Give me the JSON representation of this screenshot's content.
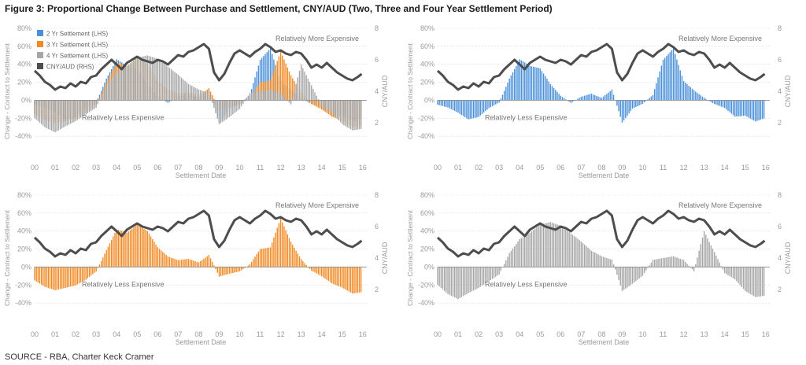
{
  "figure": {
    "title": "Figure 3: Proportional Change Between Purchase and Settlement, CNY/AUD (Two, Three and Four Year Settlement Period)",
    "source": "SOURCE - RBA, Charter Keck Cramer"
  },
  "colors": {
    "two_year": "#4a90d9",
    "three_year": "#f08a24",
    "four_year": "#a6a6a6",
    "cny_aud": "#4d4d4d",
    "axis_text": "#9a9a9a",
    "grid": "#d9d9d9"
  },
  "chart_data": [
    {
      "type": "bar",
      "panel": "top-left",
      "series_shown": [
        "2yr",
        "3yr",
        "4yr",
        "cny"
      ],
      "xlabel": "Settlement Date",
      "ylabel_left": "Change - Contract to Settlement",
      "ylabel_right": "CNY/AUD",
      "annotation_top": "Relatively More Expensive",
      "annotation_bottom": "Relatively Less Expensive",
      "legend": [
        "2 Yr Settlement (LHS)",
        "3 Yr Settlement (LHS)",
        "4 Yr Settlement (LHS)",
        "CNY/AUD (RHS)"
      ],
      "legend_position": "top-left"
    },
    {
      "type": "bar",
      "panel": "top-right",
      "series_shown": [
        "2yr",
        "cny"
      ],
      "xlabel": "Settlement Date",
      "ylabel_left": "Change - Contract to Settlement",
      "ylabel_right": "CNY/AUD",
      "annotation_top": "Relatively More Expensive",
      "annotation_bottom": "Relatively Less Expensive"
    },
    {
      "type": "bar",
      "panel": "bottom-left",
      "series_shown": [
        "3yr",
        "cny"
      ],
      "xlabel": "Settlement Date",
      "ylabel_left": "Change - Contract to Settlement",
      "ylabel_right": "CNY/AUD",
      "annotation_top": "Relatively More Expensive",
      "annotation_bottom": "Relatively Less Expensive"
    },
    {
      "type": "bar",
      "panel": "bottom-right",
      "series_shown": [
        "4yr",
        "cny"
      ],
      "xlabel": "Settlement Date",
      "ylabel_left": "Change - Contract to Settlement",
      "ylabel_right": "CNY/AUD",
      "annotation_top": "Relatively More Expensive",
      "annotation_bottom": "Relatively Less Expensive"
    }
  ],
  "shared": {
    "x_ticks": [
      "00",
      "01",
      "02",
      "03",
      "04",
      "05",
      "06",
      "07",
      "08",
      "09",
      "10",
      "11",
      "12",
      "13",
      "14",
      "15",
      "16"
    ],
    "xlim": [
      2000,
      2016.2
    ],
    "ylim_left": [
      -60,
      80
    ],
    "y_ticks_left": [
      "80%",
      "60%",
      "40%",
      "20%",
      "0%",
      "-20%",
      "-40%"
    ],
    "y_ticks_left_values": [
      80,
      60,
      40,
      20,
      0,
      -20,
      -40
    ],
    "ylim_right": [
      0,
      8
    ],
    "y_ticks_right": [
      "8",
      "6",
      "4",
      "2"
    ],
    "y_ticks_right_values": [
      8,
      6,
      4,
      2
    ],
    "cny_aud": {
      "x": [
        2000.0,
        2000.25,
        2000.5,
        2000.75,
        2001.0,
        2001.25,
        2001.5,
        2001.75,
        2002.0,
        2002.25,
        2002.5,
        2002.75,
        2003.0,
        2003.25,
        2003.5,
        2003.75,
        2004.0,
        2004.25,
        2004.5,
        2004.75,
        2005.0,
        2005.25,
        2005.5,
        2005.75,
        2006.0,
        2006.25,
        2006.5,
        2006.75,
        2007.0,
        2007.25,
        2007.5,
        2007.75,
        2008.0,
        2008.25,
        2008.5,
        2008.75,
        2009.0,
        2009.25,
        2009.5,
        2009.75,
        2010.0,
        2010.25,
        2010.5,
        2010.75,
        2011.0,
        2011.25,
        2011.5,
        2011.75,
        2012.0,
        2012.25,
        2012.5,
        2012.75,
        2013.0,
        2013.25,
        2013.5,
        2013.75,
        2014.0,
        2014.25,
        2014.5,
        2014.75,
        2015.0,
        2015.25,
        2015.5,
        2015.75,
        2015.95
      ],
      "values": [
        5.3,
        5.0,
        4.6,
        4.4,
        4.1,
        4.3,
        4.2,
        4.5,
        4.3,
        4.6,
        4.5,
        4.9,
        5.0,
        5.4,
        5.7,
        6.0,
        5.7,
        5.4,
        5.8,
        6.0,
        6.2,
        6.0,
        5.9,
        5.8,
        6.0,
        5.9,
        5.7,
        6.0,
        6.3,
        6.2,
        6.5,
        6.6,
        6.8,
        7.0,
        6.7,
        5.2,
        4.7,
        5.1,
        5.8,
        6.4,
        6.6,
        6.4,
        6.2,
        6.5,
        6.7,
        7.0,
        6.8,
        6.5,
        6.6,
        6.4,
        6.3,
        6.5,
        6.4,
        6.0,
        5.5,
        5.7,
        5.5,
        5.8,
        5.5,
        5.2,
        5.0,
        4.8,
        4.7,
        4.9,
        5.1
      ]
    },
    "two_year": {
      "x": [
        2000.0,
        2000.5,
        2001.0,
        2001.5,
        2002.0,
        2002.5,
        2003.0,
        2003.5,
        2004.0,
        2004.5,
        2005.0,
        2005.5,
        2006.0,
        2006.5,
        2007.0,
        2007.5,
        2008.0,
        2008.5,
        2009.0,
        2009.5,
        2010.0,
        2010.5,
        2011.0,
        2011.5,
        2012.0,
        2012.5,
        2013.0,
        2013.5,
        2014.0,
        2014.5,
        2015.0,
        2015.5,
        2015.95
      ],
      "values": [
        -5,
        -8,
        -14,
        -22,
        -20,
        -10,
        -3,
        28,
        50,
        40,
        36,
        18,
        5,
        -3,
        4,
        8,
        3,
        14,
        -28,
        -10,
        -4,
        6,
        45,
        58,
        22,
        12,
        3,
        -5,
        -10,
        -20,
        -18,
        -24,
        -20
      ]
    },
    "three_year": {
      "x": [
        2000.0,
        2000.5,
        2001.0,
        2001.5,
        2002.0,
        2002.5,
        2003.0,
        2003.5,
        2004.0,
        2004.5,
        2005.0,
        2005.5,
        2006.0,
        2006.5,
        2007.0,
        2007.5,
        2008.0,
        2008.5,
        2009.0,
        2009.5,
        2010.0,
        2010.5,
        2011.0,
        2011.5,
        2012.0,
        2012.5,
        2013.0,
        2013.5,
        2014.0,
        2014.5,
        2015.0,
        2015.5,
        2015.95
      ],
      "values": [
        -15,
        -22,
        -26,
        -24,
        -22,
        -16,
        -6,
        22,
        46,
        40,
        48,
        40,
        22,
        12,
        8,
        10,
        6,
        16,
        -12,
        -8,
        -5,
        3,
        20,
        22,
        56,
        30,
        10,
        -5,
        -12,
        -20,
        -24,
        -30,
        -28
      ]
    },
    "four_year": {
      "x": [
        2000.0,
        2000.5,
        2001.0,
        2001.5,
        2002.0,
        2002.5,
        2003.0,
        2003.5,
        2004.0,
        2004.5,
        2005.0,
        2005.5,
        2006.0,
        2006.5,
        2007.0,
        2007.5,
        2008.0,
        2008.5,
        2009.0,
        2009.5,
        2010.0,
        2010.5,
        2011.0,
        2011.5,
        2012.0,
        2012.5,
        2013.0,
        2013.5,
        2014.0,
        2014.5,
        2015.0,
        2015.5,
        2015.95
      ],
      "values": [
        -20,
        -30,
        -36,
        -30,
        -25,
        -18,
        -10,
        18,
        34,
        40,
        48,
        50,
        46,
        38,
        30,
        20,
        14,
        10,
        -30,
        -20,
        -10,
        8,
        10,
        12,
        8,
        -5,
        45,
        20,
        -8,
        -15,
        -28,
        -34,
        -32
      ]
    }
  }
}
